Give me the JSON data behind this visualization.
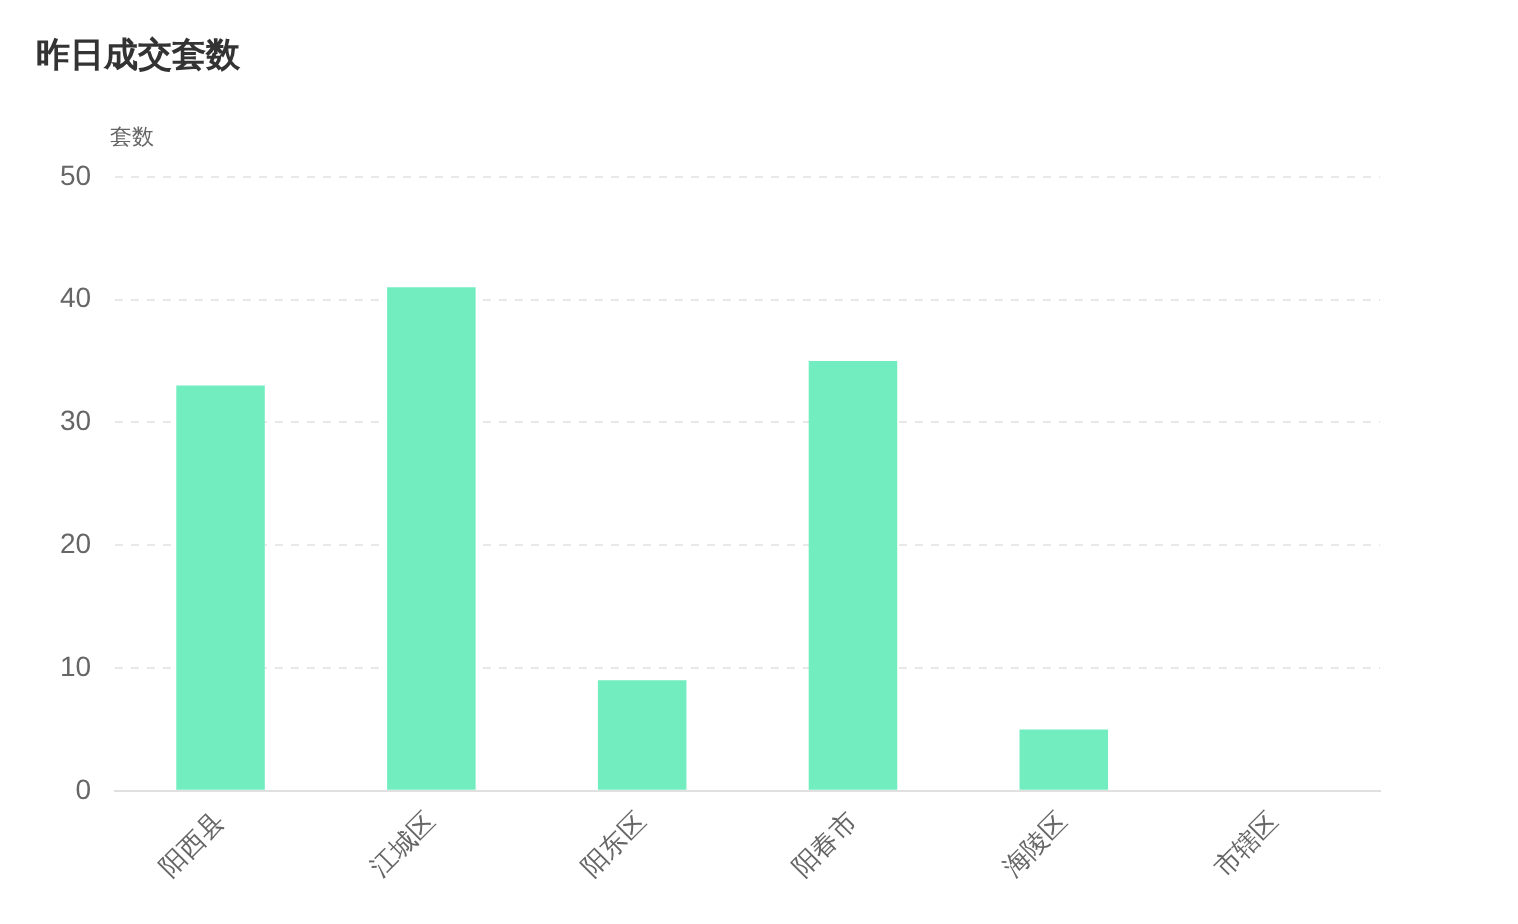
{
  "chart_data": {
    "type": "bar",
    "title": "昨日成交套数",
    "ylabel": "套数",
    "categories": [
      "阳西县",
      "江城区",
      "阳东区",
      "阳春市",
      "海陵区",
      "市辖区"
    ],
    "values": [
      33,
      41,
      9,
      35,
      5,
      0
    ],
    "color": "#72edbf",
    "ylim": [
      0,
      50
    ],
    "yticks": [
      0,
      10,
      20,
      30,
      40,
      50
    ],
    "grid": "y",
    "legend": false
  }
}
